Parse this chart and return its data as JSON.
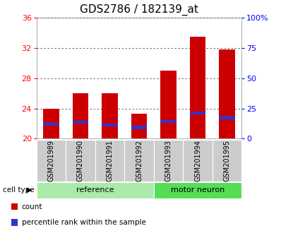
{
  "title": "GDS2786 / 182139_at",
  "samples": [
    "GSM201989",
    "GSM201990",
    "GSM201991",
    "GSM201992",
    "GSM201993",
    "GSM201994",
    "GSM201995"
  ],
  "count_values": [
    24.0,
    26.0,
    26.0,
    23.3,
    29.0,
    33.5,
    31.8
  ],
  "percentile_bottom": [
    21.7,
    22.0,
    21.6,
    21.3,
    22.1,
    23.2,
    22.6
  ],
  "percentile_height": [
    0.4,
    0.4,
    0.4,
    0.4,
    0.4,
    0.4,
    0.4
  ],
  "ymin": 20,
  "ymax": 36,
  "yticks": [
    20,
    24,
    28,
    32,
    36
  ],
  "right_ytick_vals": [
    0,
    25,
    50,
    75,
    100
  ],
  "right_ytick_labels": [
    "0",
    "25",
    "50",
    "75",
    "100%"
  ],
  "bar_color": "#cc0000",
  "blue_color": "#3333cc",
  "bar_width": 0.55,
  "groups": [
    {
      "name": "reference",
      "indices": [
        0,
        1,
        2,
        3
      ],
      "color": "#aaeaaa"
    },
    {
      "name": "motor neuron",
      "indices": [
        4,
        5,
        6
      ],
      "color": "#55dd55"
    }
  ],
  "group_label": "cell type",
  "legend_items": [
    {
      "label": "count",
      "color": "#cc0000"
    },
    {
      "label": "percentile rank within the sample",
      "color": "#3333cc"
    }
  ],
  "background_color": "#ffffff",
  "sample_box_color": "#cccccc",
  "title_fontsize": 11,
  "tick_fontsize": 8,
  "label_fontsize": 7,
  "group_fontsize": 8
}
